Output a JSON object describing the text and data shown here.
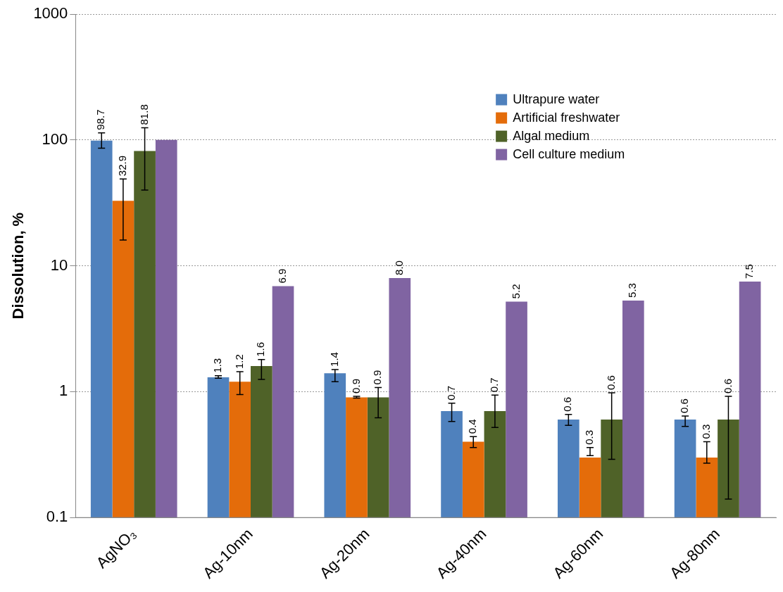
{
  "chart_data": {
    "type": "bar",
    "ylabel": "Dissolution, %",
    "categories": [
      "AgNO₃",
      "Ag-10nm",
      "Ag-20nm",
      "Ag-40nm",
      "Ag-60nm",
      "Ag-80nm"
    ],
    "series": [
      {
        "name": "Ultrapure water",
        "color": "#4f81bd",
        "values": [
          98.7,
          1.3,
          1.4,
          0.7,
          0.6,
          0.6
        ],
        "value_labels": [
          "98.7",
          "1.3",
          "1.4",
          "0.7",
          "0.6",
          "0.6"
        ],
        "errors": [
          [
            86,
            114
          ],
          [
            1.28,
            1.34
          ],
          [
            1.2,
            1.5
          ],
          [
            0.58,
            0.81
          ],
          [
            0.54,
            0.66
          ],
          [
            0.53,
            0.64
          ]
        ]
      },
      {
        "name": "Artificial freshwater",
        "color": "#e46c0a",
        "values": [
          32.9,
          1.2,
          0.9,
          0.4,
          0.3,
          0.3
        ],
        "value_labels": [
          "32.9",
          "1.2",
          "0.9",
          "0.4",
          "0.3",
          "0.3"
        ],
        "errors": [
          [
            16,
            49
          ],
          [
            0.95,
            1.44
          ],
          [
            0.89,
            0.92
          ],
          [
            0.36,
            0.44
          ],
          [
            0.31,
            0.36
          ],
          [
            0.27,
            0.4
          ]
        ]
      },
      {
        "name": "Algal medium",
        "color": "#4f6228",
        "values": [
          81.8,
          1.6,
          0.9,
          0.7,
          0.6,
          0.6
        ],
        "value_labels": [
          "81.8",
          "1.6",
          "0.9",
          "0.7",
          "0.6",
          "0.6"
        ],
        "errors": [
          [
            40,
            125
          ],
          [
            1.25,
            1.8
          ],
          [
            0.62,
            1.08
          ],
          [
            0.52,
            0.94
          ],
          [
            0.29,
            0.98
          ],
          [
            0.14,
            0.92
          ]
        ]
      },
      {
        "name": "Cell culture medium",
        "color": "#8064a2",
        "values": [
          100,
          6.9,
          8.0,
          5.2,
          5.3,
          7.5
        ],
        "value_labels": [
          null,
          "6.9",
          "8.0",
          "5.2",
          "5.3",
          "7.5"
        ]
      }
    ],
    "log": "y",
    "ylim": [
      0.1,
      1000
    ],
    "yticks": [
      0.1,
      1,
      10,
      100,
      1000
    ],
    "grid": "y",
    "legend": "top right"
  }
}
